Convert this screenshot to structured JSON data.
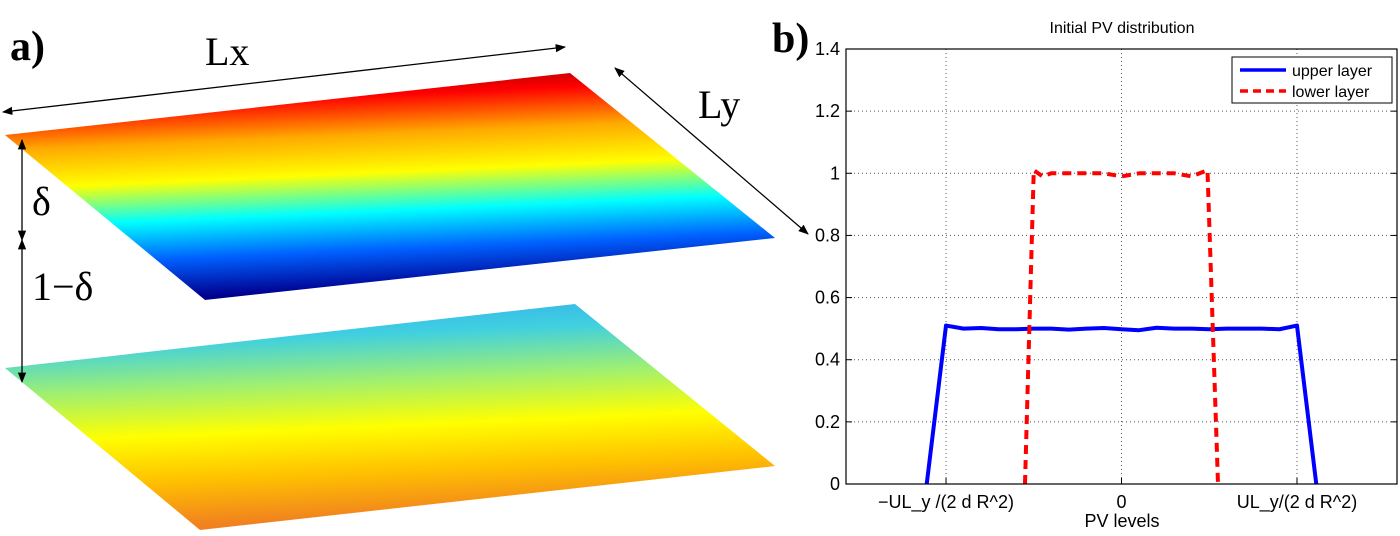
{
  "panel_a": {
    "label": "a)",
    "lx_label": "Lx",
    "ly_label": "Ly",
    "delta_label": "δ",
    "one_minus_delta_label": "1−δ",
    "upper_colors": [
      "#7f0000",
      "#ff0000",
      "#ffaa00",
      "#ffff00",
      "#00ffff",
      "#0060ff",
      "#00008f"
    ],
    "lower_colors": [
      "#30a8f0",
      "#40d0e0",
      "#a0f070",
      "#ffff00",
      "#ffc000",
      "#f08020"
    ]
  },
  "panel_b": {
    "label": "b)"
  },
  "chart_data": {
    "type": "line",
    "title": "Initial PV distribution",
    "xlabel": "PV levels",
    "ylabel": "",
    "xlim": [
      -1.57,
      1.57
    ],
    "ylim": [
      0,
      1.4
    ],
    "grid": true,
    "legend_position": "top-right",
    "x_ticks": [
      {
        "value": -1,
        "label": "−UL_y /(2 d R^2)"
      },
      {
        "value": 0,
        "label": "0"
      },
      {
        "value": 1,
        "label": "UL_y/(2 d R^2)"
      }
    ],
    "y_ticks": [
      {
        "value": 0,
        "label": "0"
      },
      {
        "value": 0.2,
        "label": "0.2"
      },
      {
        "value": 0.4,
        "label": "0.4"
      },
      {
        "value": 0.6,
        "label": "0.6"
      },
      {
        "value": 0.8,
        "label": "0.8"
      },
      {
        "value": 1,
        "label": "1"
      },
      {
        "value": 1.2,
        "label": "1.2"
      },
      {
        "value": 1.4,
        "label": "1.4"
      }
    ],
    "series": [
      {
        "name": "upper layer",
        "color": "#0000ff",
        "style": "solid",
        "x": [
          -1.11,
          -1.0,
          -0.9,
          -0.8,
          -0.7,
          -0.6,
          -0.5,
          -0.4,
          -0.3,
          -0.2,
          -0.1,
          0,
          0.1,
          0.2,
          0.3,
          0.4,
          0.5,
          0.6,
          0.7,
          0.8,
          0.9,
          1.0,
          1.11
        ],
        "y": [
          0,
          0.51,
          0.5,
          0.502,
          0.498,
          0.498,
          0.5,
          0.5,
          0.497,
          0.5,
          0.502,
          0.498,
          0.495,
          0.503,
          0.5,
          0.5,
          0.498,
          0.5,
          0.5,
          0.5,
          0.498,
          0.51,
          0
        ]
      },
      {
        "name": "lower layer",
        "color": "#ff0000",
        "style": "dashed",
        "x": [
          -0.55,
          -0.5,
          -0.45,
          -0.4,
          -0.3,
          -0.2,
          -0.1,
          0,
          0.1,
          0.2,
          0.3,
          0.4,
          0.49,
          0.55
        ],
        "y": [
          0,
          1.01,
          0.99,
          1.0,
          1.0,
          1.0,
          1.0,
          0.99,
          1.0,
          1.0,
          1.0,
          0.99,
          1.01,
          0
        ]
      }
    ]
  }
}
